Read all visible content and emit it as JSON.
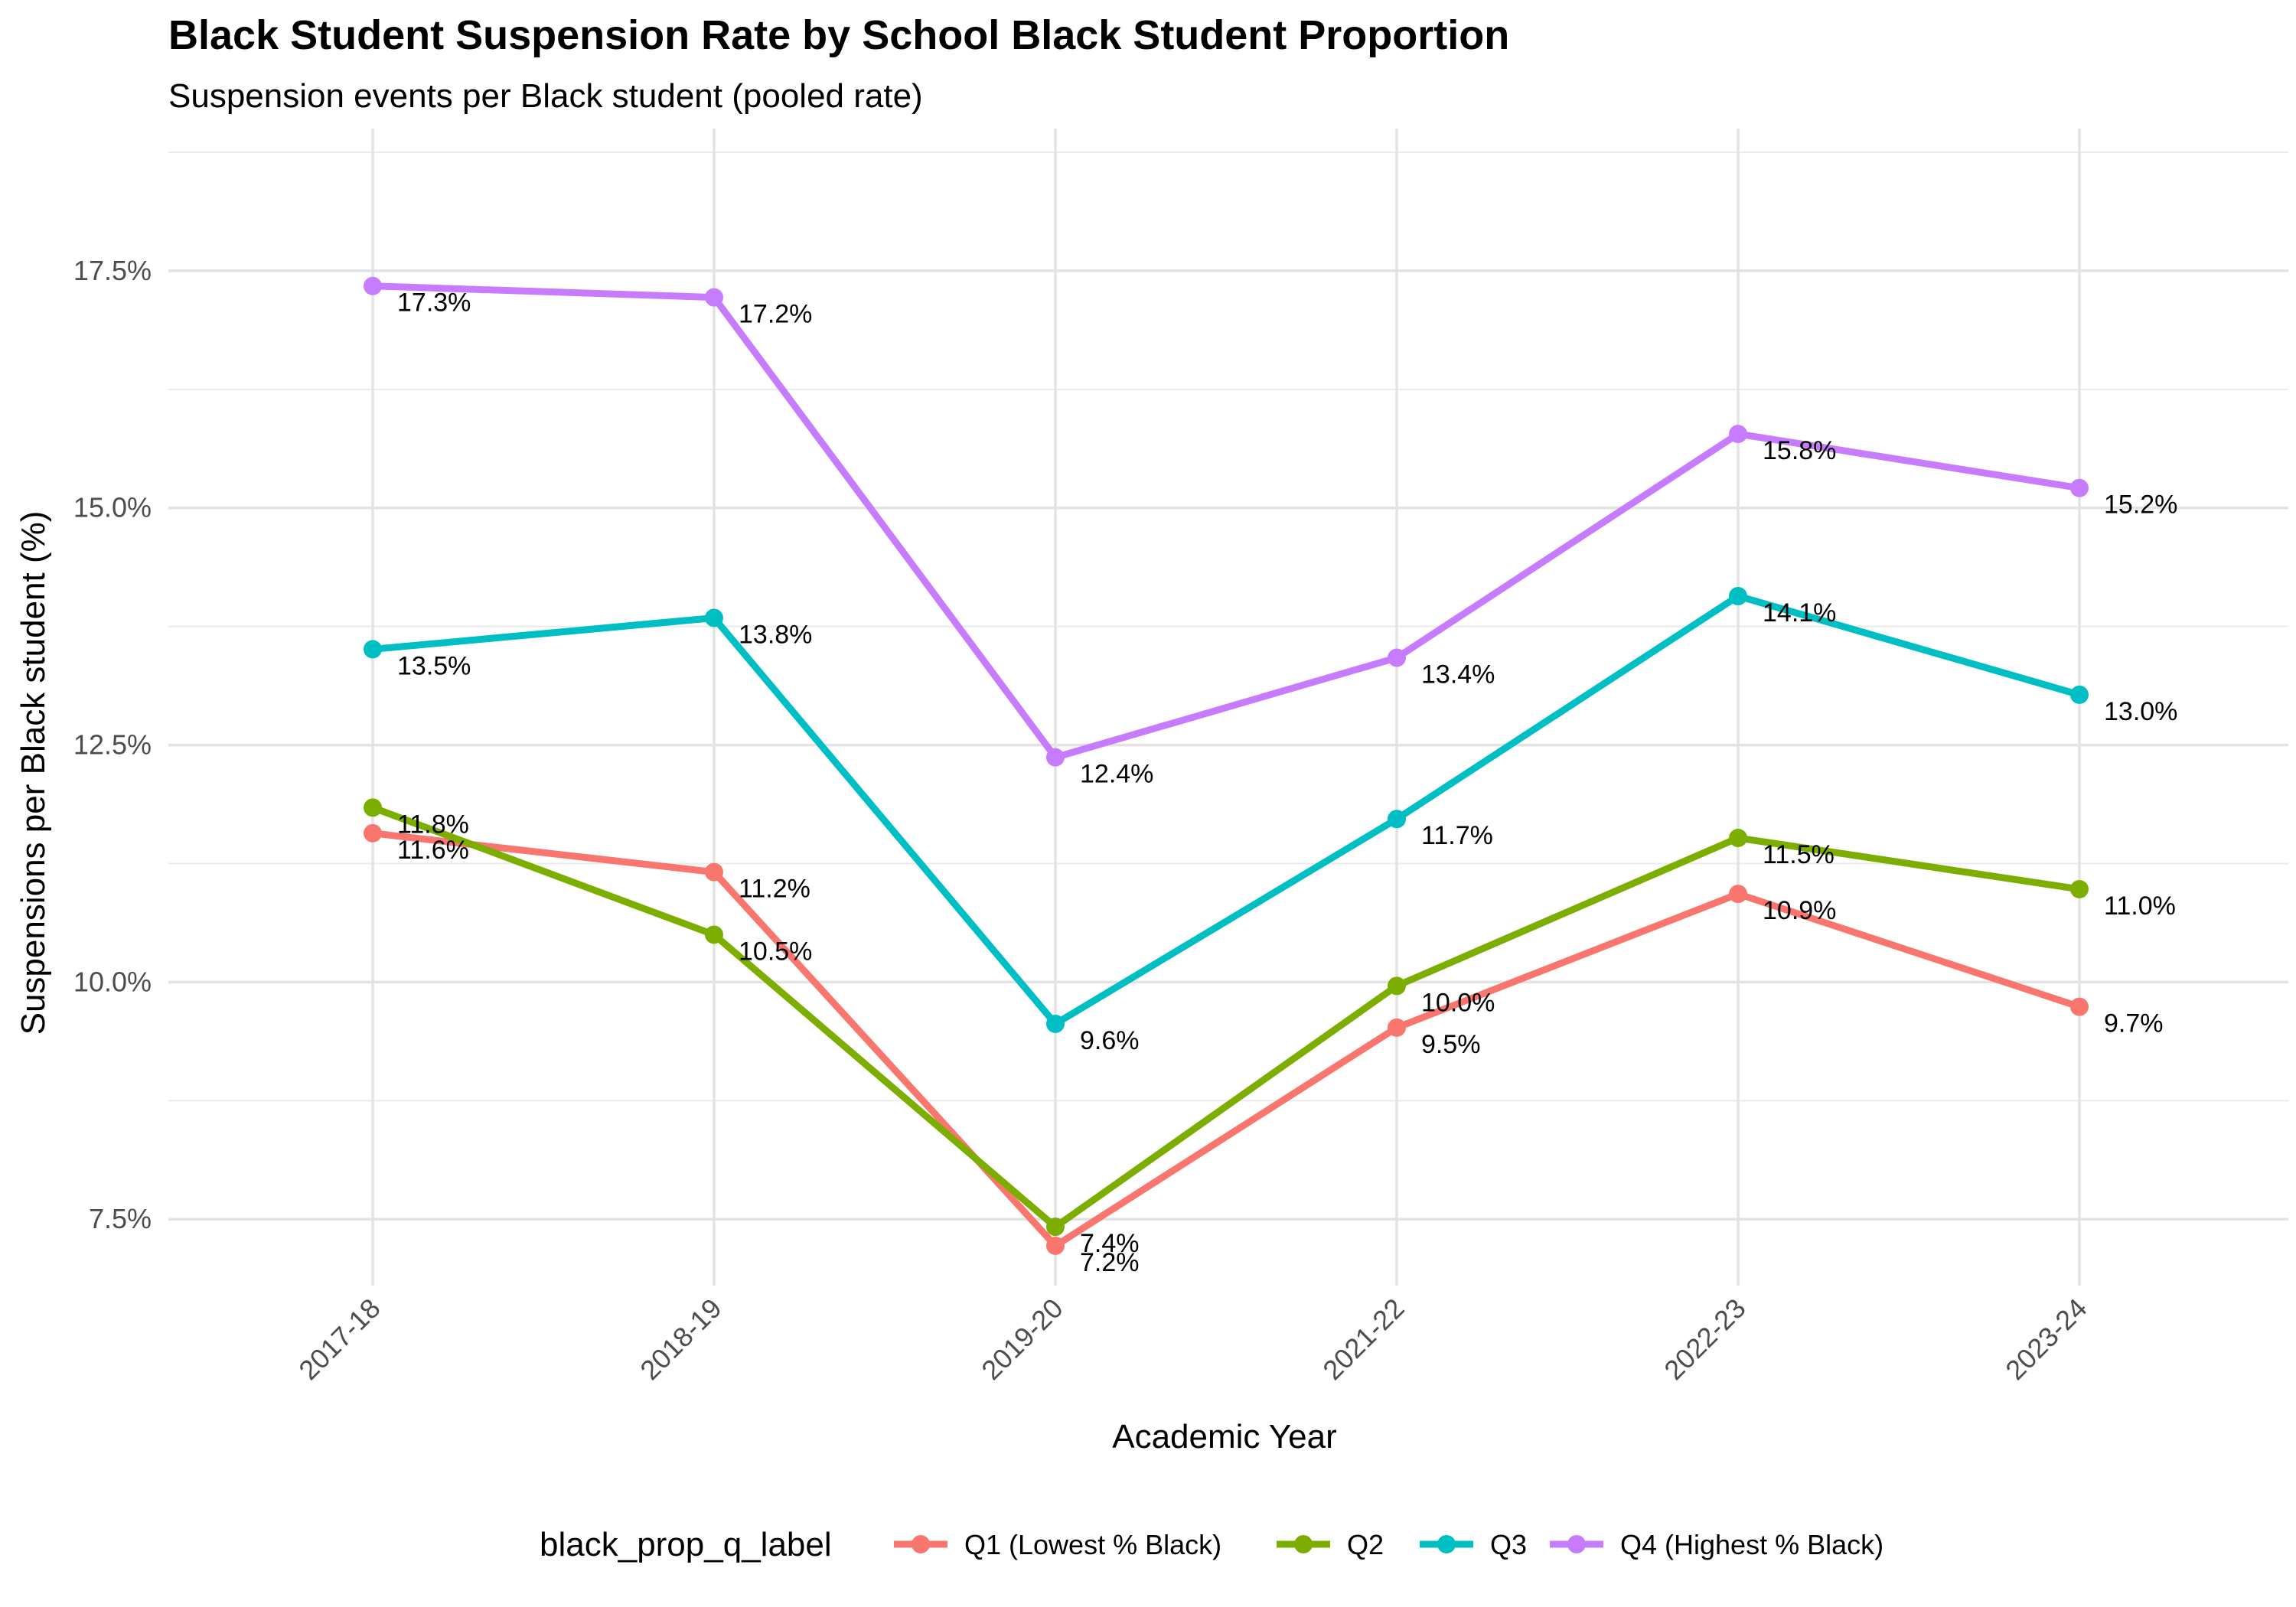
{
  "chart_data": {
    "type": "line",
    "title": "Black Student Suspension Rate by School Black Student Proportion",
    "subtitle": "Suspension events per Black student (pooled rate)",
    "xlabel": "Academic Year",
    "ylabel": "Suspensions per Black student (%)",
    "categories": [
      "2017-18",
      "2018-19",
      "2019-20",
      "2021-22",
      "2022-23",
      "2023-24"
    ],
    "ylim": [
      6.8,
      19.0
    ],
    "yticks": [
      7.5,
      10.0,
      12.5,
      15.0,
      17.5
    ],
    "ytick_labels": [
      "7.5%",
      "10.0%",
      "12.5%",
      "15.0%",
      "17.5%"
    ],
    "grid": true,
    "legend": {
      "title": "black_prop_q_label",
      "position": "bottom"
    },
    "series": [
      {
        "name": "Q1 (Lowest % Black)",
        "color": "#F8766D",
        "values": [
          11.57,
          11.16,
          7.22,
          9.52,
          10.93,
          9.74
        ],
        "labels": [
          "11.6%",
          "11.2%",
          "7.2%",
          "9.5%",
          "10.9%",
          "9.7%"
        ]
      },
      {
        "name": "Q2",
        "color": "#7CAE00",
        "values": [
          11.84,
          10.5,
          7.42,
          9.96,
          11.52,
          10.98
        ],
        "labels": [
          "11.8%",
          "10.5%",
          "7.4%",
          "10.0%",
          "11.5%",
          "11.0%"
        ]
      },
      {
        "name": "Q3",
        "color": "#00BFC4",
        "values": [
          13.51,
          13.84,
          9.56,
          11.72,
          14.07,
          13.03
        ],
        "labels": [
          "13.5%",
          "13.8%",
          "9.6%",
          "11.7%",
          "14.1%",
          "13.0%"
        ]
      },
      {
        "name": "Q4 (Highest % Black)",
        "color": "#C77CFF",
        "values": [
          17.34,
          17.22,
          12.37,
          13.42,
          15.78,
          15.21
        ],
        "labels": [
          "17.3%",
          "17.2%",
          "12.4%",
          "13.4%",
          "15.8%",
          "15.2%"
        ]
      }
    ]
  }
}
